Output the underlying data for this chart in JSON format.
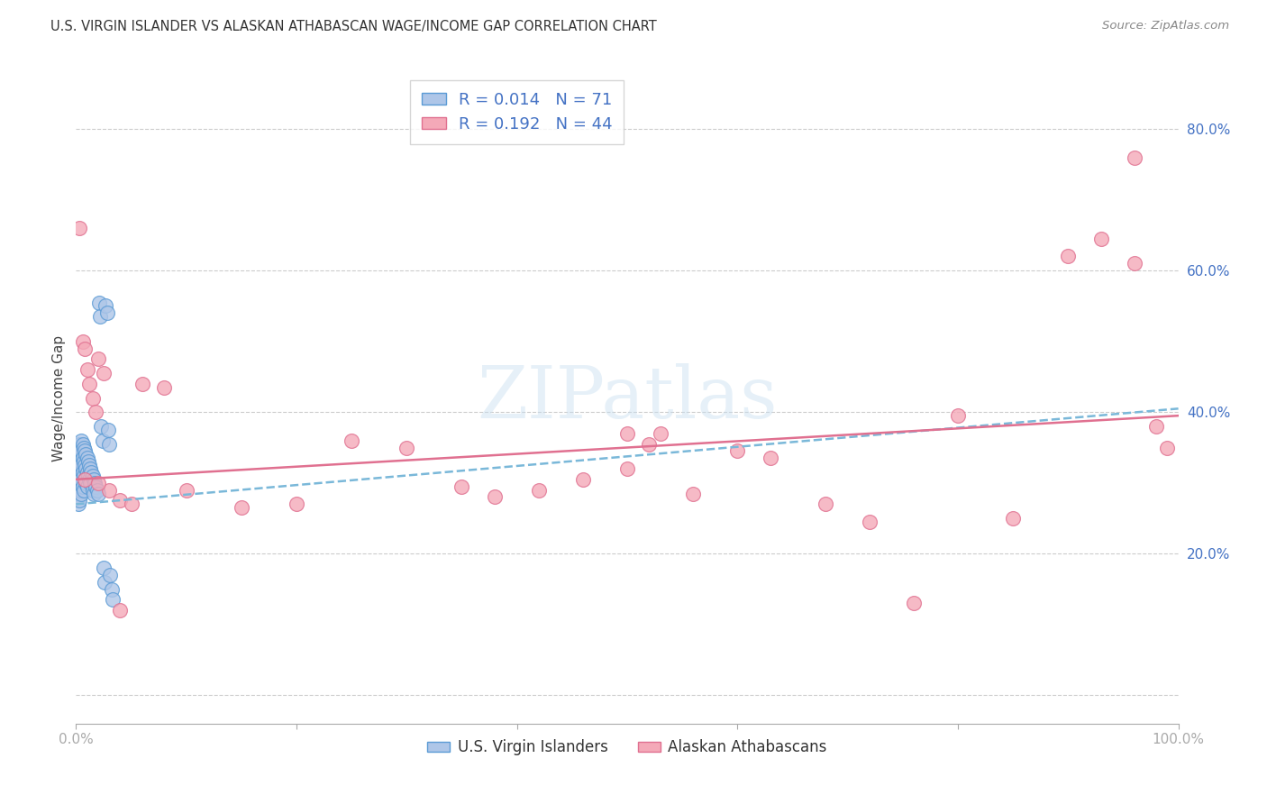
{
  "title": "U.S. VIRGIN ISLANDER VS ALASKAN ATHABASCAN WAGE/INCOME GAP CORRELATION CHART",
  "source": "Source: ZipAtlas.com",
  "ylabel": "Wage/Income Gap",
  "r_blue": 0.014,
  "n_blue": 71,
  "r_pink": 0.192,
  "n_pink": 44,
  "color_blue": "#aec6e8",
  "color_pink": "#f4a9b8",
  "edge_blue": "#5b9bd5",
  "edge_pink": "#e07090",
  "line_blue_color": "#7ab8d9",
  "line_pink_color": "#e07090",
  "watermark_text": "ZIPatlas",
  "legend_bottom_labels": [
    "U.S. Virgin Islanders",
    "Alaskan Athabascans"
  ],
  "blue_trendline": [
    0.27,
    0.405
  ],
  "pink_trendline": [
    0.305,
    0.395
  ],
  "blue_x": [
    0.001,
    0.001,
    0.001,
    0.001,
    0.001,
    0.001,
    0.002,
    0.002,
    0.002,
    0.002,
    0.002,
    0.002,
    0.003,
    0.003,
    0.003,
    0.003,
    0.003,
    0.004,
    0.004,
    0.004,
    0.004,
    0.005,
    0.005,
    0.005,
    0.005,
    0.005,
    0.006,
    0.006,
    0.006,
    0.006,
    0.007,
    0.007,
    0.007,
    0.007,
    0.008,
    0.008,
    0.008,
    0.009,
    0.009,
    0.009,
    0.01,
    0.01,
    0.01,
    0.011,
    0.011,
    0.012,
    0.012,
    0.013,
    0.013,
    0.014,
    0.015,
    0.015,
    0.016,
    0.016,
    0.017,
    0.018,
    0.019,
    0.02,
    0.021,
    0.022,
    0.023,
    0.024,
    0.025,
    0.026,
    0.027,
    0.028,
    0.029,
    0.03,
    0.031,
    0.032,
    0.033
  ],
  "blue_y": [
    0.34,
    0.32,
    0.31,
    0.3,
    0.29,
    0.28,
    0.34,
    0.33,
    0.315,
    0.3,
    0.285,
    0.27,
    0.355,
    0.335,
    0.315,
    0.295,
    0.275,
    0.35,
    0.33,
    0.31,
    0.29,
    0.36,
    0.345,
    0.325,
    0.305,
    0.285,
    0.355,
    0.335,
    0.315,
    0.295,
    0.35,
    0.33,
    0.31,
    0.29,
    0.345,
    0.325,
    0.305,
    0.34,
    0.32,
    0.3,
    0.335,
    0.315,
    0.295,
    0.33,
    0.31,
    0.325,
    0.305,
    0.32,
    0.3,
    0.315,
    0.31,
    0.29,
    0.305,
    0.285,
    0.3,
    0.295,
    0.29,
    0.285,
    0.555,
    0.535,
    0.38,
    0.36,
    0.18,
    0.16,
    0.55,
    0.54,
    0.375,
    0.355,
    0.17,
    0.15,
    0.135
  ],
  "pink_x": [
    0.003,
    0.006,
    0.008,
    0.01,
    0.012,
    0.015,
    0.018,
    0.02,
    0.025,
    0.03,
    0.04,
    0.05,
    0.06,
    0.08,
    0.1,
    0.15,
    0.2,
    0.25,
    0.3,
    0.35,
    0.38,
    0.42,
    0.46,
    0.5,
    0.52,
    0.56,
    0.6,
    0.63,
    0.68,
    0.72,
    0.76,
    0.8,
    0.85,
    0.9,
    0.93,
    0.96,
    0.98,
    0.99,
    0.008,
    0.02,
    0.04,
    0.5,
    0.53,
    0.96
  ],
  "pink_y": [
    0.66,
    0.5,
    0.49,
    0.46,
    0.44,
    0.42,
    0.4,
    0.475,
    0.455,
    0.29,
    0.275,
    0.27,
    0.44,
    0.435,
    0.29,
    0.265,
    0.27,
    0.36,
    0.35,
    0.295,
    0.28,
    0.29,
    0.305,
    0.37,
    0.355,
    0.285,
    0.345,
    0.335,
    0.27,
    0.245,
    0.13,
    0.395,
    0.25,
    0.62,
    0.645,
    0.61,
    0.38,
    0.35,
    0.305,
    0.3,
    0.12,
    0.32,
    0.37,
    0.76
  ]
}
